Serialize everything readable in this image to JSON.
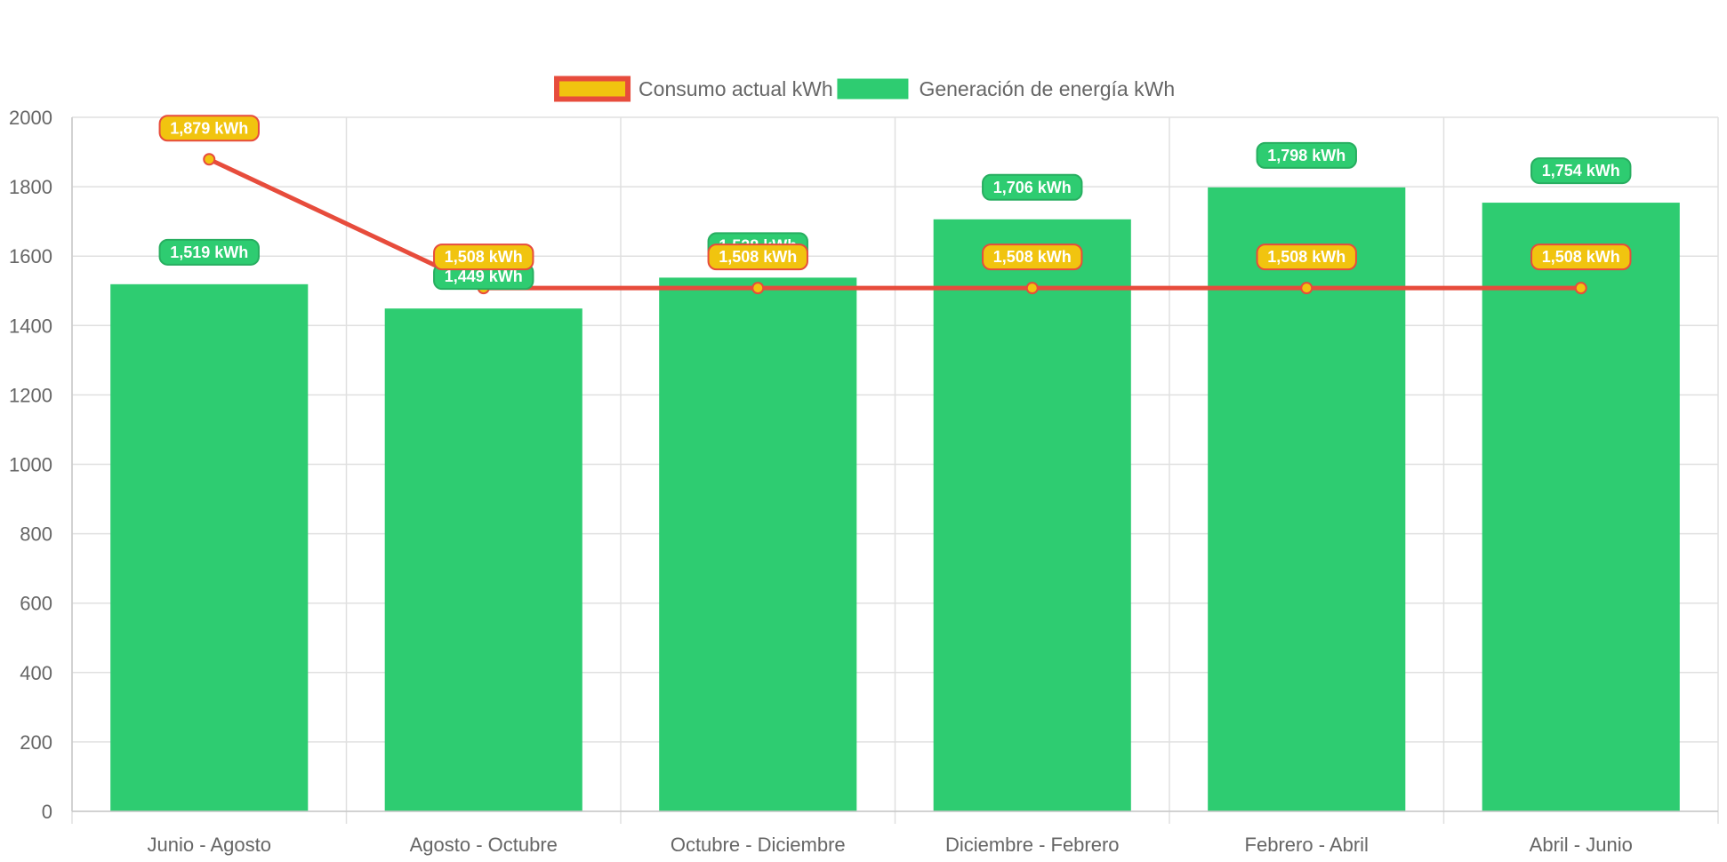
{
  "chart_data": {
    "type": "bar",
    "title": "",
    "xlabel": "",
    "ylabel": "",
    "categories": [
      "Junio - Agosto",
      "Agosto - Octubre",
      "Octubre - Diciembre",
      "Diciembre - Febrero",
      "Febrero - Abril",
      "Abril - Junio"
    ],
    "ylim": [
      0,
      2000
    ],
    "yticks": [
      0,
      200,
      400,
      600,
      800,
      1000,
      1200,
      1400,
      1600,
      1800,
      2000
    ],
    "grid": true,
    "legend_position": "top-center",
    "series": [
      {
        "name": "Consumo actual kWh",
        "type": "line",
        "values": [
          1879,
          1508,
          1508,
          1508,
          1508,
          1508
        ],
        "labels": [
          "1,879 kWh",
          "1,508 kWh",
          "1,508 kWh",
          "1,508 kWh",
          "1,508 kWh",
          "1,508 kWh"
        ],
        "line_color": "#e74c3c",
        "point_color": "#f1c40f",
        "label_bg": "#f1c40f",
        "label_border": "#e74c3c"
      },
      {
        "name": "Generación de energía kWh",
        "type": "bar",
        "values": [
          1519,
          1449,
          1538,
          1706,
          1798,
          1754
        ],
        "labels": [
          "1,519 kWh",
          "1,449 kWh",
          "1,538 kWh",
          "1,706 kWh",
          "1,798 kWh",
          "1,754 kWh"
        ],
        "bar_color": "#2ecc71",
        "label_bg": "#2ecc71",
        "label_border": "#27ae60"
      }
    ]
  }
}
